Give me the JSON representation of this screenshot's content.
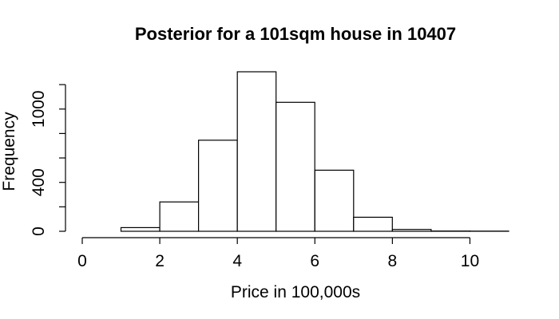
{
  "chart_data": {
    "type": "bar",
    "title": "Posterior for a 101sqm house in 10407",
    "xlabel": "Price in 100,000s",
    "ylabel": "Frequency",
    "bin_edges": [
      0,
      1,
      2,
      3,
      4,
      5,
      6,
      7,
      8,
      9,
      10,
      11
    ],
    "values": [
      0,
      30,
      240,
      745,
      1305,
      1055,
      500,
      115,
      15,
      2,
      1
    ],
    "xlim": [
      0,
      11
    ],
    "ylim": [
      0,
      1305
    ],
    "x_ticks": [
      0,
      2,
      4,
      6,
      8,
      10
    ],
    "y_ticks_labeled": [
      0,
      400,
      1000
    ],
    "y_ticks": [
      0,
      200,
      400,
      600,
      800,
      1000,
      1200
    ],
    "grid": false,
    "bar_fill": "#ffffff",
    "bar_stroke": "#000000"
  }
}
